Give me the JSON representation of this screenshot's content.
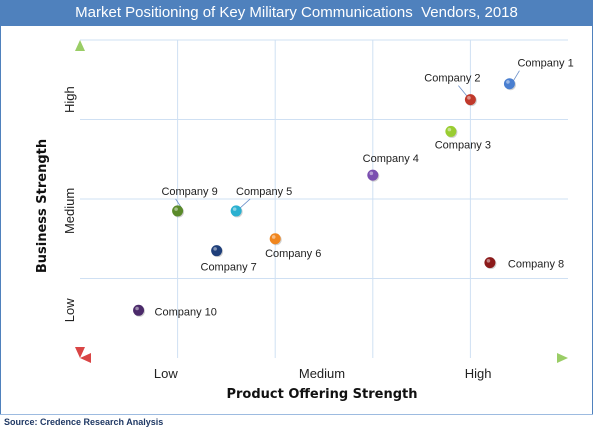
{
  "title": "Market Positioning of Key Military Communications  Vendors, 2018",
  "source": "Source: Credence Research Analysis",
  "chart_data": {
    "type": "scatter",
    "xlabel": "Product Offering Strength",
    "ylabel": "Business Strength",
    "x_tick_labels": [
      "Low",
      "Medium",
      "High"
    ],
    "y_tick_labels": [
      "Low",
      "Medium",
      "High"
    ],
    "xlim": [
      0,
      5
    ],
    "ylim": [
      0,
      4
    ],
    "grid": true,
    "points": [
      {
        "label": "Company 1",
        "x": 4.4,
        "y": 3.45,
        "color": "#4a7fd0"
      },
      {
        "label": "Company 2",
        "x": 4.0,
        "y": 3.25,
        "color": "#c0392b"
      },
      {
        "label": "Company 3",
        "x": 3.8,
        "y": 2.85,
        "color": "#9acd32"
      },
      {
        "label": "Company 4",
        "x": 3.0,
        "y": 2.3,
        "color": "#7b4fb0"
      },
      {
        "label": "Company 5",
        "x": 1.6,
        "y": 1.85,
        "color": "#2bb0d0"
      },
      {
        "label": "Company 6",
        "x": 2.0,
        "y": 1.5,
        "color": "#f0861f"
      },
      {
        "label": "Company 7",
        "x": 1.4,
        "y": 1.35,
        "color": "#1f3f7a"
      },
      {
        "label": "Company 8",
        "x": 4.2,
        "y": 1.2,
        "color": "#8b1a1a"
      },
      {
        "label": "Company 9",
        "x": 1.0,
        "y": 1.85,
        "color": "#5a8a2a"
      },
      {
        "label": "Company 10",
        "x": 0.6,
        "y": 0.6,
        "color": "#4b2a6a"
      }
    ]
  }
}
